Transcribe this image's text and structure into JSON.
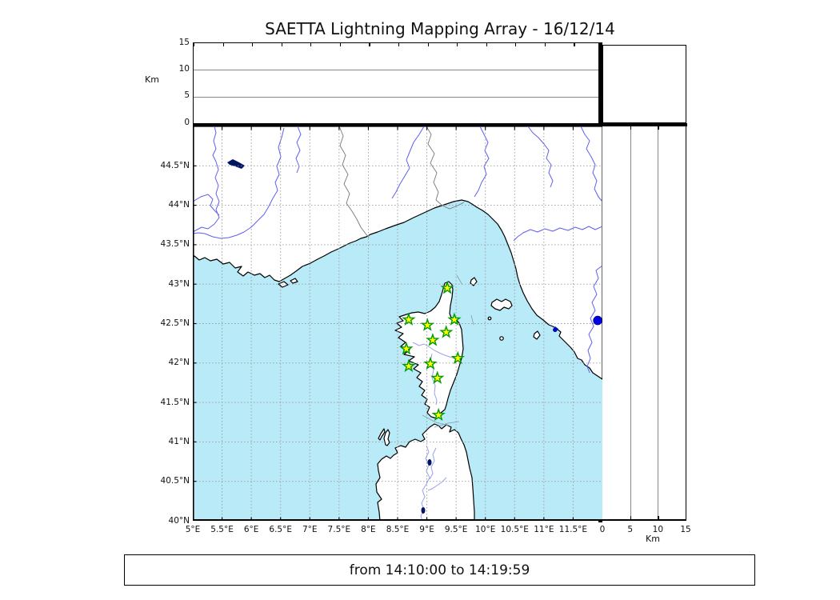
{
  "title": "SAETTA Lightning Mapping Array - 16/12/14",
  "footer": {
    "time_range": "from 14:10:00 to 14:19:59"
  },
  "colors": {
    "sea": "#b9eaf7",
    "land": "#ffffff",
    "coastline": "#000000",
    "river": "#5f5fee",
    "island_river": "#9aa0f0",
    "admin_border": "#777777",
    "grid": "#999999",
    "station_fill": "#ffff00",
    "station_stroke": "#009900",
    "source_dot": "#0000e0",
    "lake": "#001466"
  },
  "map_panel": {
    "extent": {
      "lon_min": 5,
      "lon_max": 12,
      "lat_min": 40,
      "lat_max": 45
    },
    "lon_ticks": [
      {
        "deg": 5.0,
        "label": "5°E"
      },
      {
        "deg": 5.5,
        "label": "5.5°E"
      },
      {
        "deg": 6.0,
        "label": "6°E"
      },
      {
        "deg": 6.5,
        "label": "6.5°E"
      },
      {
        "deg": 7.0,
        "label": "7°E"
      },
      {
        "deg": 7.5,
        "label": "7.5°E"
      },
      {
        "deg": 8.0,
        "label": "8°E"
      },
      {
        "deg": 8.5,
        "label": "8.5°E"
      },
      {
        "deg": 9.0,
        "label": "9°E"
      },
      {
        "deg": 9.5,
        "label": "9.5°E"
      },
      {
        "deg": 10.0,
        "label": "10°E"
      },
      {
        "deg": 10.5,
        "label": "10.5°E"
      },
      {
        "deg": 11.0,
        "label": "11°E"
      },
      {
        "deg": 11.5,
        "label": "11.5°E"
      }
    ],
    "lat_ticks": [
      {
        "deg": 44.5,
        "label": "44.5°N"
      },
      {
        "deg": 44.0,
        "label": "44°N"
      },
      {
        "deg": 43.5,
        "label": "43.5°N"
      },
      {
        "deg": 43.0,
        "label": "43°N"
      },
      {
        "deg": 42.5,
        "label": "42.5°N"
      },
      {
        "deg": 42.0,
        "label": "42°N"
      },
      {
        "deg": 41.5,
        "label": "41.5°N"
      },
      {
        "deg": 41.0,
        "label": "41°N"
      },
      {
        "deg": 40.5,
        "label": "40.5°N"
      },
      {
        "deg": 40.0,
        "label": "40°N"
      }
    ]
  },
  "altitude_panels": {
    "unit_label": "Km",
    "max_km": 15,
    "ticks": [
      {
        "km": 0,
        "label": "0"
      },
      {
        "km": 5,
        "label": "5"
      },
      {
        "km": 10,
        "label": "10"
      },
      {
        "km": 15,
        "label": "15"
      }
    ]
  },
  "stations": [
    {
      "lon": 9.35,
      "lat": 42.95
    },
    {
      "lon": 8.69,
      "lat": 42.55
    },
    {
      "lon": 9.01,
      "lat": 42.48
    },
    {
      "lon": 9.47,
      "lat": 42.55
    },
    {
      "lon": 9.33,
      "lat": 42.39
    },
    {
      "lon": 9.1,
      "lat": 42.29
    },
    {
      "lon": 8.65,
      "lat": 42.18
    },
    {
      "lon": 9.53,
      "lat": 42.06
    },
    {
      "lon": 8.69,
      "lat": 41.96
    },
    {
      "lon": 9.06,
      "lat": 41.99
    },
    {
      "lon": 9.18,
      "lat": 41.81
    },
    {
      "lon": 9.2,
      "lat": 41.34
    }
  ],
  "lightning_sources": [
    {
      "lon": 11.92,
      "lat": 42.54,
      "size": "large"
    },
    {
      "lon": 11.19,
      "lat": 42.42,
      "size": "small"
    }
  ]
}
